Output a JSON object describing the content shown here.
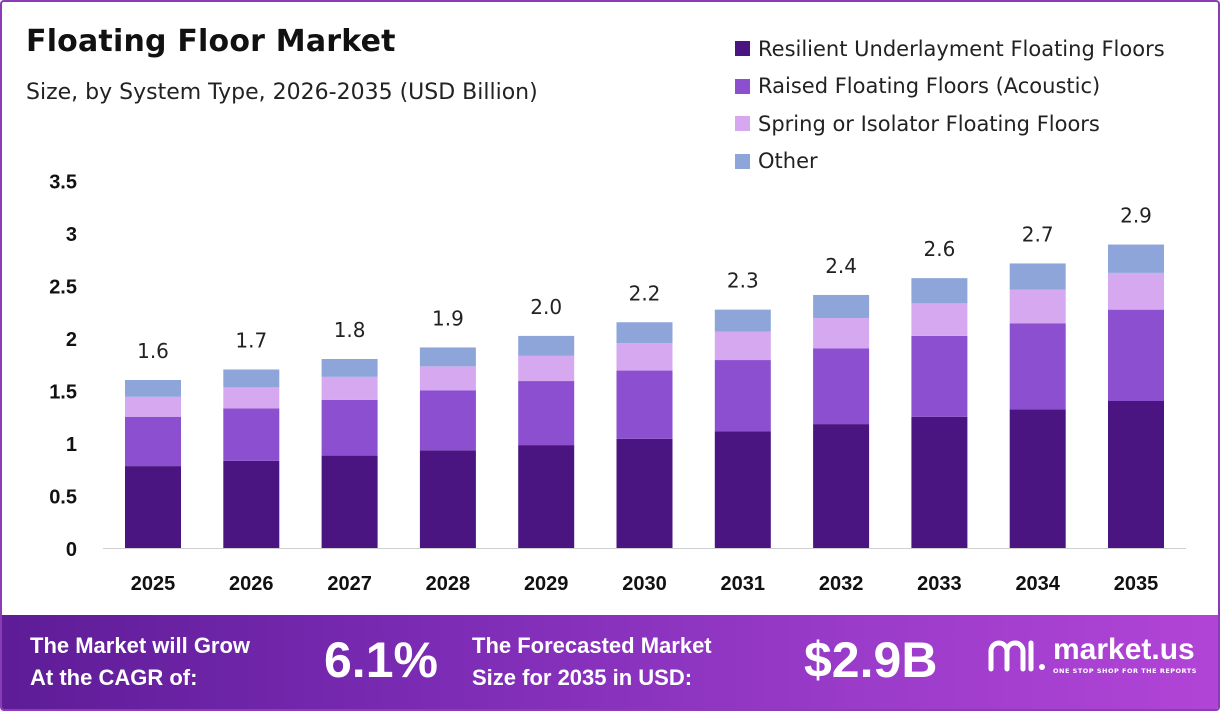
{
  "title": "Floating Floor Market",
  "subtitle": "Size, by System Type, 2026-2035 (USD Billion)",
  "chart_data": {
    "type": "bar",
    "stacked": true,
    "categories": [
      "2025",
      "2026",
      "2027",
      "2028",
      "2029",
      "2030",
      "2031",
      "2032",
      "2033",
      "2034",
      "2035"
    ],
    "series": [
      {
        "name": "Resilient Underlayment Floating Floors",
        "color": "#4a1580",
        "values": [
          0.78,
          0.83,
          0.88,
          0.93,
          0.98,
          1.04,
          1.11,
          1.18,
          1.25,
          1.32,
          1.4
        ]
      },
      {
        "name": "Raised Floating Floors (Acoustic)",
        "color": "#8b4fd0",
        "values": [
          0.47,
          0.5,
          0.53,
          0.57,
          0.61,
          0.65,
          0.68,
          0.72,
          0.77,
          0.82,
          0.87
        ]
      },
      {
        "name": "Spring or Isolator Floating Floors",
        "color": "#d5a8ef",
        "values": [
          0.19,
          0.2,
          0.22,
          0.23,
          0.24,
          0.26,
          0.27,
          0.29,
          0.31,
          0.32,
          0.35
        ]
      },
      {
        "name": "Other",
        "color": "#8ea5da",
        "values": [
          0.16,
          0.17,
          0.17,
          0.18,
          0.19,
          0.2,
          0.21,
          0.22,
          0.24,
          0.25,
          0.27
        ]
      }
    ],
    "totals": [
      "1.6",
      "1.7",
      "1.8",
      "1.9",
      "2.0",
      "2.2",
      "2.3",
      "2.4",
      "2.6",
      "2.7",
      "2.9"
    ],
    "yticks": [
      "0",
      "0.5",
      "1",
      "1.5",
      "2",
      "2.5",
      "3",
      "3.5"
    ],
    "ylim": [
      0,
      3.5
    ],
    "xlabel": "",
    "ylabel": "",
    "legend": "top-right",
    "grid": false
  },
  "footer": {
    "cagr_line1": "The Market will Grow",
    "cagr_line2": "At the CAGR of:",
    "cagr_value": "6.1%",
    "forecast_line1": "The Forecasted Market",
    "forecast_line2": "Size for 2035 in USD:",
    "forecast_value": "$2.9B",
    "brand_name": "market.us",
    "brand_tagline": "ONE STOP SHOP FOR THE REPORTS"
  }
}
